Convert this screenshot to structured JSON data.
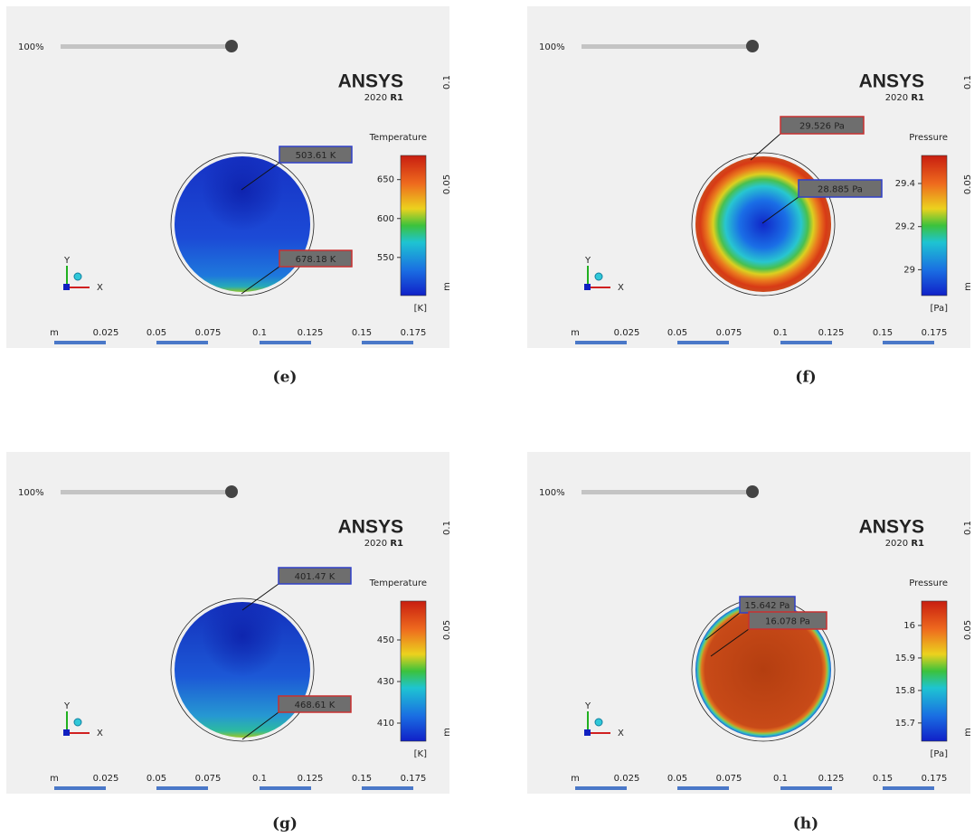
{
  "panels": [
    {
      "zoom": "100%",
      "brand": "ANSYS",
      "version": "2020",
      "release": "R1",
      "legend_title": "Temperature",
      "unit": "[K]",
      "range": [
        501,
        681
      ],
      "ticks": [
        550,
        600,
        650
      ],
      "probes": [
        "503.61 K",
        "678.18 K"
      ],
      "caption": "(e)"
    },
    {
      "zoom": "100%",
      "brand": "ANSYS",
      "version": "2020",
      "release": "R1",
      "legend_title": "Pressure",
      "unit": "[Pa]",
      "range": [
        28.88,
        29.53
      ],
      "ticks": [
        29,
        29.2,
        29.4
      ],
      "probes": [
        "29.526 Pa",
        "28.885 Pa"
      ],
      "caption": "(f)"
    },
    {
      "zoom": "100%",
      "brand": "ANSYS",
      "version": "2020",
      "release": "R1",
      "legend_title": "Temperature",
      "unit": "[K]",
      "range": [
        401.3,
        468.7
      ],
      "ticks": [
        410,
        430,
        450
      ],
      "probes": [
        "401.47 K",
        "468.61 K"
      ],
      "caption": "(g)"
    },
    {
      "zoom": "100%",
      "brand": "ANSYS",
      "version": "2020",
      "release": "R1",
      "legend_title": "Pressure",
      "unit": "[Pa]",
      "range": [
        15.644,
        16.075
      ],
      "ticks": [
        15.7,
        15.8,
        15.9,
        16
      ],
      "probes": [
        "15.642 Pa",
        "16.078 Pa"
      ],
      "caption": "(h)"
    }
  ],
  "x_scale": [
    "m",
    "0.025",
    "0.05",
    "0.075",
    "0.1",
    "0.125",
    "0.15",
    "0.175"
  ],
  "y_scale": [
    "0.1",
    "0.05",
    "m"
  ],
  "triad": [
    "X",
    "Y"
  ]
}
